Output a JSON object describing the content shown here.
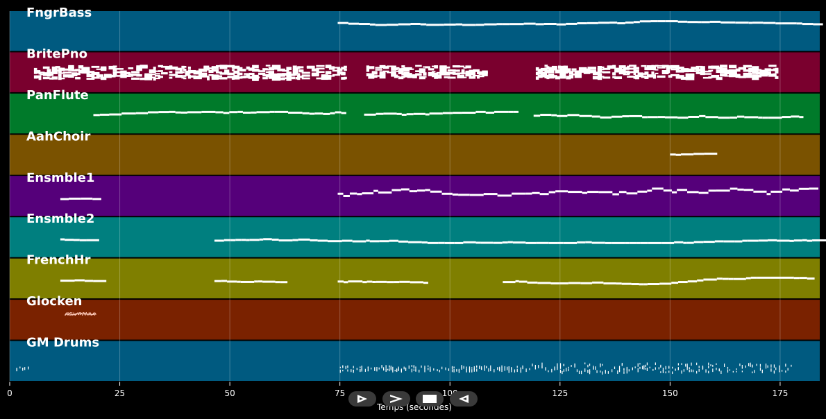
{
  "chart_data": {
    "type": "piano-roll",
    "xlabel": "Temps (secondes)",
    "xlim": [
      0,
      184
    ],
    "x_ticks": [
      0,
      25,
      50,
      75,
      100,
      125,
      150,
      175
    ],
    "tracks": [
      {
        "name": "FngrBass",
        "color": "#005a80",
        "segments": [
          {
            "start": 74.5,
            "end": 183.5,
            "lo": 0.22,
            "hi": 0.32,
            "density": "line"
          }
        ]
      },
      {
        "name": "BritePno",
        "color": "#7a002e",
        "segments": [
          {
            "start": 5.5,
            "end": 76,
            "lo": 0.3,
            "hi": 0.62,
            "density": "dense"
          },
          {
            "start": 81,
            "end": 108,
            "lo": 0.3,
            "hi": 0.6,
            "density": "dense"
          },
          {
            "start": 119.5,
            "end": 174,
            "lo": 0.3,
            "hi": 0.6,
            "density": "dense"
          }
        ]
      },
      {
        "name": "PanFlute",
        "color": "#007a2a",
        "segments": [
          {
            "start": 19,
            "end": 75.5,
            "lo": 0.42,
            "hi": 0.56,
            "density": "line"
          },
          {
            "start": 80.5,
            "end": 114.5,
            "lo": 0.42,
            "hi": 0.56,
            "density": "line"
          },
          {
            "start": 119,
            "end": 180,
            "lo": 0.42,
            "hi": 0.56,
            "density": "line"
          }
        ]
      },
      {
        "name": "AahChoir",
        "color": "#7a5200",
        "segments": [
          {
            "start": 150,
            "end": 160,
            "lo": 0.42,
            "hi": 0.5,
            "density": "line"
          }
        ]
      },
      {
        "name": "Ensmble1",
        "color": "#55007a",
        "segments": [
          {
            "start": 11.5,
            "end": 19,
            "lo": 0.48,
            "hi": 0.56,
            "density": "line"
          },
          {
            "start": 74.5,
            "end": 183.5,
            "lo": 0.28,
            "hi": 0.62,
            "density": "line"
          }
        ]
      },
      {
        "name": "Ensmble2",
        "color": "#007f7f",
        "segments": [
          {
            "start": 11.5,
            "end": 19,
            "lo": 0.48,
            "hi": 0.56,
            "density": "line"
          },
          {
            "start": 46.5,
            "end": 182.5,
            "lo": 0.48,
            "hi": 0.6,
            "density": "line"
          }
        ]
      },
      {
        "name": "FrenchHr",
        "color": "#7f7f00",
        "segments": [
          {
            "start": 11.5,
            "end": 19,
            "lo": 0.48,
            "hi": 0.56,
            "density": "line"
          },
          {
            "start": 46.5,
            "end": 63,
            "lo": 0.48,
            "hi": 0.58,
            "density": "line"
          },
          {
            "start": 74.5,
            "end": 95,
            "lo": 0.45,
            "hi": 0.58,
            "density": "line"
          },
          {
            "start": 112,
            "end": 182.5,
            "lo": 0.44,
            "hi": 0.6,
            "density": "line"
          }
        ]
      },
      {
        "name": "Glocken",
        "color": "#7a2200",
        "segments": [
          {
            "start": 12.5,
            "end": 19.5,
            "lo": 0.3,
            "hi": 0.36,
            "density": "sparkle"
          }
        ]
      },
      {
        "name": "GM Drums",
        "color": "#005a80",
        "segments": [
          {
            "start": 1.5,
            "end": 4.5,
            "lo": 0.62,
            "hi": 0.66,
            "density": "drums"
          },
          {
            "start": 75,
            "end": 118,
            "lo": 0.58,
            "hi": 0.7,
            "density": "drums"
          },
          {
            "start": 118,
            "end": 178,
            "lo": 0.52,
            "hi": 0.74,
            "density": "drums"
          }
        ]
      }
    ]
  },
  "controls": [
    {
      "id": "play",
      "icon": "play-outline-icon"
    },
    {
      "id": "forward",
      "icon": "chevron-right-icon"
    },
    {
      "id": "stop",
      "icon": "stop-icon"
    },
    {
      "id": "rewind",
      "icon": "rewind-outline-icon"
    }
  ]
}
